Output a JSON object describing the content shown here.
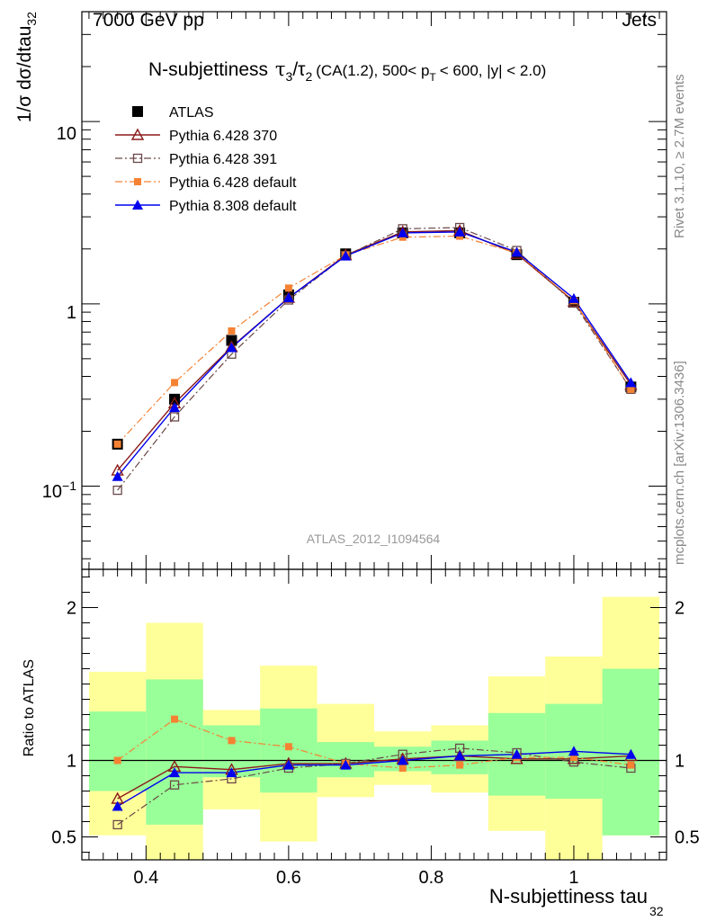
{
  "header": {
    "left": "7000 GeV pp",
    "right": "Jets"
  },
  "plot_title": {
    "main": "N-subjettiness",
    "rest": "(CA(1.2), 500< p",
    "rest_sub": "T",
    "rest_end": "< 600, |y| < 2.0)"
  },
  "side_text": {
    "rivet": "Rivet 3.1.10, ≥ 2.7M events",
    "mcplots": "mcplots.cern.ch [arXiv:1306.3436]"
  },
  "watermark": "ATLAS_2012_I1094564",
  "colors": {
    "atlas": "#000000",
    "p370": "#8b1a1a",
    "p391": "#6b4848",
    "p6def": "#f58232",
    "p8def": "#0000ee",
    "band_outer": "#ffff99",
    "band_inner": "#99ff99"
  },
  "chart_data": [
    {
      "type": "line",
      "ylabel": "1/σ dσ/dtau",
      "ylabel_sub": "32",
      "yscale": "log",
      "ylim": [
        0.035,
        40
      ],
      "xlim": [
        0.31,
        1.13
      ],
      "ytick_labels": [
        "10⁻¹",
        "1",
        "10"
      ],
      "x": [
        0.36,
        0.44,
        0.52,
        0.6,
        0.68,
        0.76,
        0.84,
        0.92,
        1.0,
        1.08
      ],
      "bin_edges": [
        0.32,
        0.4,
        0.48,
        0.56,
        0.64,
        0.72,
        0.8,
        0.88,
        0.96,
        1.04,
        1.12
      ],
      "series": [
        {
          "name": "ATLAS",
          "key": "atlas",
          "values": [
            0.17,
            0.3,
            0.63,
            1.12,
            1.88,
            2.45,
            2.45,
            1.86,
            1.02,
            0.35
          ]
        },
        {
          "name": "Pythia 6.428 370",
          "key": "p370",
          "values": [
            0.122,
            0.285,
            0.58,
            1.08,
            1.85,
            2.48,
            2.52,
            1.88,
            1.03,
            0.36
          ]
        },
        {
          "name": "Pythia 6.428 391",
          "key": "p391",
          "values": [
            0.095,
            0.24,
            0.53,
            1.05,
            1.84,
            2.58,
            2.62,
            1.96,
            1.01,
            0.34
          ]
        },
        {
          "name": "Pythia 6.428 default",
          "key": "p6def",
          "values": [
            0.17,
            0.37,
            0.71,
            1.22,
            1.85,
            2.32,
            2.35,
            1.9,
            1.04,
            0.34
          ]
        },
        {
          "name": "Pythia 8.308 default",
          "key": "p8def",
          "values": [
            0.113,
            0.27,
            0.575,
            1.08,
            1.83,
            2.45,
            2.48,
            1.92,
            1.07,
            0.37
          ]
        }
      ]
    },
    {
      "type": "line",
      "ylabel": "Ratio to ATLAS",
      "xlabel": "N-subjettiness tau",
      "xlabel_sub": "32",
      "ylim": [
        0.35,
        2.25
      ],
      "xlim": [
        0.31,
        1.13
      ],
      "yticks": [
        0.5,
        1,
        2
      ],
      "ytick_labels": [
        "0.5",
        "1",
        "2"
      ],
      "xticks": [
        0.4,
        0.6,
        0.8,
        1.0
      ],
      "xtick_labels": [
        "0.4",
        "0.6",
        "0.8",
        "1"
      ],
      "x": [
        0.36,
        0.44,
        0.52,
        0.6,
        0.68,
        0.76,
        0.84,
        0.92,
        1.0,
        1.08
      ],
      "bin_edges": [
        0.32,
        0.4,
        0.48,
        0.56,
        0.64,
        0.72,
        0.8,
        0.88,
        0.96,
        1.04,
        1.12
      ],
      "band_outer": [
        [
          0.51,
          1.58
        ],
        [
          0.35,
          1.9
        ],
        [
          0.68,
          1.33
        ],
        [
          0.47,
          1.62
        ],
        [
          0.76,
          1.37
        ],
        [
          0.84,
          1.19
        ],
        [
          0.79,
          1.23
        ],
        [
          0.54,
          1.55
        ],
        [
          0.35,
          1.68
        ],
        [
          0.51,
          2.07
        ]
      ],
      "band_inner": [
        [
          0.8,
          1.32
        ],
        [
          0.58,
          1.53
        ],
        [
          0.89,
          1.23
        ],
        [
          0.79,
          1.34
        ],
        [
          0.89,
          1.12
        ],
        [
          0.93,
          1.09
        ],
        [
          0.91,
          1.13
        ],
        [
          0.77,
          1.31
        ],
        [
          0.75,
          1.37
        ],
        [
          0.51,
          1.6
        ]
      ],
      "series": [
        {
          "name": "Pythia 6.428 370",
          "key": "p370",
          "values": [
            0.75,
            0.96,
            0.94,
            0.98,
            0.98,
            1.01,
            1.03,
            1.01,
            1.01,
            1.03
          ]
        },
        {
          "name": "Pythia 6.428 391",
          "key": "p391",
          "values": [
            0.58,
            0.84,
            0.88,
            0.95,
            0.98,
            1.04,
            1.08,
            1.05,
            0.99,
            0.95
          ]
        },
        {
          "name": "Pythia 6.428 default",
          "key": "p6def",
          "values": [
            1.0,
            1.27,
            1.13,
            1.09,
            0.98,
            0.95,
            0.97,
            1.02,
            1.02,
            0.97
          ]
        },
        {
          "name": "Pythia 8.308 default",
          "key": "p8def",
          "values": [
            0.7,
            0.92,
            0.92,
            0.97,
            0.97,
            1.0,
            1.03,
            1.04,
            1.06,
            1.04
          ]
        }
      ]
    }
  ]
}
